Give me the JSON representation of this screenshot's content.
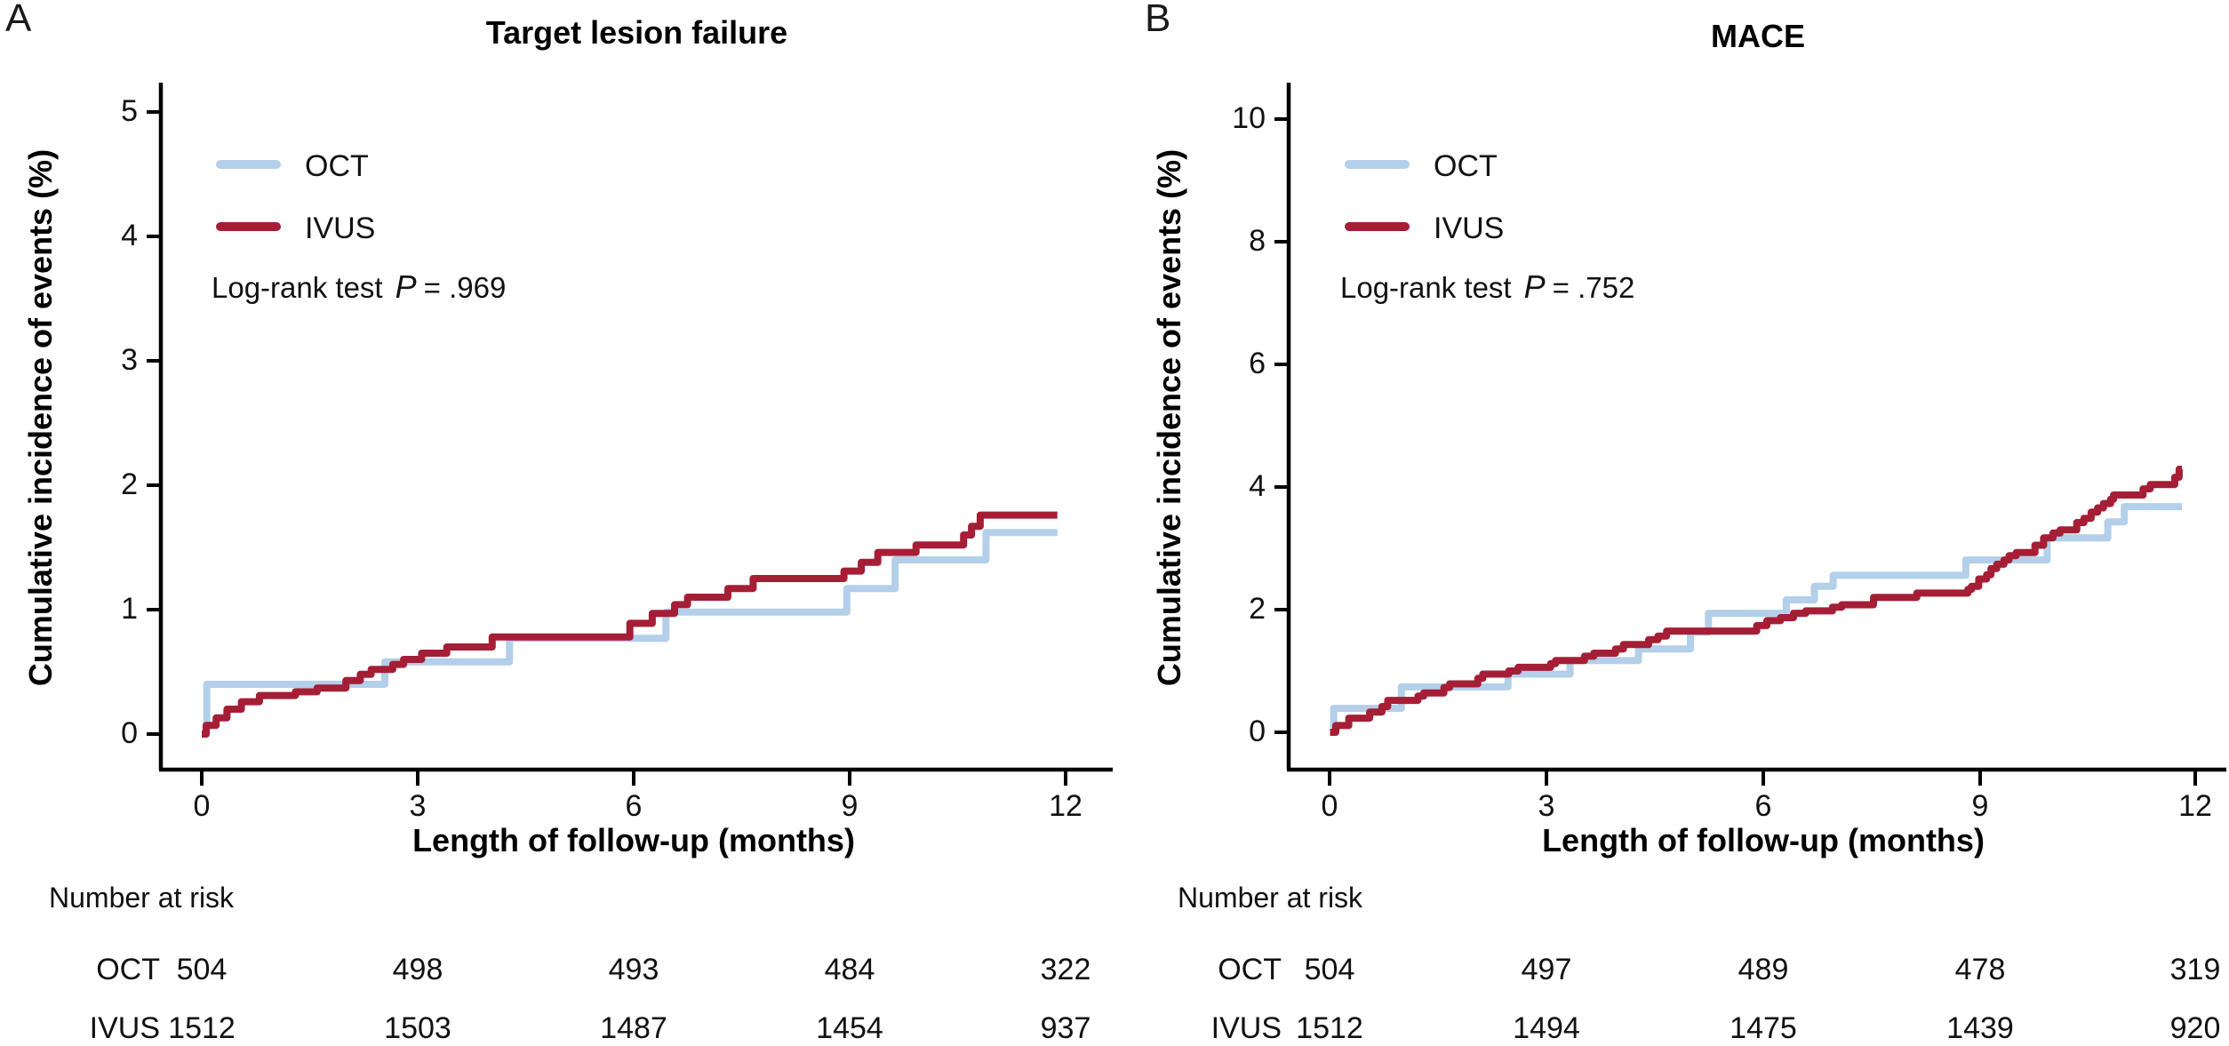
{
  "colors": {
    "oct": "#b3cfe9",
    "ivus": "#a51e35",
    "axis": "#000000"
  },
  "chart_data": [
    {
      "type": "line",
      "step": true,
      "panel_label": "A",
      "title": "Target lesion failure",
      "xlabel": "Length of follow-up (months)",
      "ylabel": "Cumulative incidence of events (%)",
      "xlim": [
        0,
        12
      ],
      "ylim": [
        0,
        5
      ],
      "x_ticks": [
        0,
        3,
        6,
        9,
        12
      ],
      "y_ticks": [
        0,
        1,
        2,
        3,
        4,
        5
      ],
      "grid": false,
      "legend_position": "top-left",
      "logrank": {
        "prefix": "Log-rank test",
        "stat": "P",
        "value": "= .969"
      },
      "series": [
        {
          "name": "OCT",
          "key": "oct",
          "points": [
            [
              0,
              0
            ],
            [
              0.07,
              0.4
            ],
            [
              2.54,
              0.58
            ],
            [
              4.27,
              0.77
            ],
            [
              6.44,
              0.98
            ],
            [
              8.95,
              1.17
            ],
            [
              9.62,
              1.4
            ],
            [
              10.88,
              1.62
            ],
            [
              11.87,
              1.62
            ]
          ]
        },
        {
          "name": "IVUS",
          "key": "ivus",
          "points": [
            [
              0,
              0
            ],
            [
              0.06,
              0.07
            ],
            [
              0.2,
              0.13
            ],
            [
              0.35,
              0.2
            ],
            [
              0.55,
              0.26
            ],
            [
              0.8,
              0.31
            ],
            [
              1.3,
              0.34
            ],
            [
              1.6,
              0.37
            ],
            [
              2.0,
              0.43
            ],
            [
              2.2,
              0.48
            ],
            [
              2.35,
              0.52
            ],
            [
              2.65,
              0.56
            ],
            [
              2.8,
              0.6
            ],
            [
              3.05,
              0.65
            ],
            [
              3.4,
              0.7
            ],
            [
              4.03,
              0.78
            ],
            [
              5.94,
              0.89
            ],
            [
              6.25,
              0.97
            ],
            [
              6.56,
              1.04
            ],
            [
              6.74,
              1.1
            ],
            [
              7.3,
              1.17
            ],
            [
              7.65,
              1.25
            ],
            [
              8.91,
              1.31
            ],
            [
              9.15,
              1.38
            ],
            [
              9.38,
              1.46
            ],
            [
              9.91,
              1.52
            ],
            [
              10.57,
              1.6
            ],
            [
              10.68,
              1.67
            ],
            [
              10.8,
              1.76
            ],
            [
              11.87,
              1.76
            ]
          ]
        }
      ],
      "number_at_risk": {
        "heading": "Number at risk",
        "time_points": [
          0,
          3,
          6,
          9,
          12
        ],
        "rows": [
          {
            "label": "OCT",
            "counts": [
              504,
              498,
              493,
              484,
              322
            ]
          },
          {
            "label": "IVUS",
            "counts": [
              1512,
              1503,
              1487,
              1454,
              937
            ]
          }
        ]
      }
    },
    {
      "type": "line",
      "step": true,
      "panel_label": "B",
      "title": "MACE",
      "xlabel": "Length of follow-up (months)",
      "ylabel": "Cumulative incidence of events (%)",
      "xlim": [
        0,
        12
      ],
      "ylim": [
        0,
        10
      ],
      "x_ticks": [
        0,
        3,
        6,
        9,
        12
      ],
      "y_ticks": [
        0,
        2,
        4,
        6,
        8,
        10
      ],
      "grid": false,
      "legend_position": "top-left",
      "logrank": {
        "prefix": "Log-rank test",
        "stat": "P",
        "value": "= .752"
      },
      "series": [
        {
          "name": "OCT",
          "key": "oct",
          "points": [
            [
              0,
              0
            ],
            [
              0.05,
              0.39
            ],
            [
              0.99,
              0.74
            ],
            [
              2.47,
              0.95
            ],
            [
              3.33,
              1.17
            ],
            [
              4.28,
              1.36
            ],
            [
              5.0,
              1.63
            ],
            [
              5.25,
              1.94
            ],
            [
              6.33,
              2.16
            ],
            [
              6.72,
              2.38
            ],
            [
              6.98,
              2.56
            ],
            [
              8.82,
              2.81
            ],
            [
              9.95,
              3.17
            ],
            [
              10.79,
              3.43
            ],
            [
              11.02,
              3.68
            ],
            [
              11.82,
              3.68
            ]
          ]
        },
        {
          "name": "IVUS",
          "key": "ivus",
          "points": [
            [
              0,
              0
            ],
            [
              0.08,
              0.11
            ],
            [
              0.26,
              0.23
            ],
            [
              0.55,
              0.33
            ],
            [
              0.72,
              0.42
            ],
            [
              0.8,
              0.52
            ],
            [
              1.22,
              0.59
            ],
            [
              1.3,
              0.64
            ],
            [
              1.58,
              0.73
            ],
            [
              1.66,
              0.79
            ],
            [
              2.05,
              0.88
            ],
            [
              2.12,
              0.95
            ],
            [
              2.48,
              1.0
            ],
            [
              2.61,
              1.06
            ],
            [
              3.06,
              1.12
            ],
            [
              3.13,
              1.17
            ],
            [
              3.53,
              1.24
            ],
            [
              3.66,
              1.29
            ],
            [
              3.96,
              1.36
            ],
            [
              4.07,
              1.43
            ],
            [
              4.42,
              1.51
            ],
            [
              4.55,
              1.57
            ],
            [
              4.67,
              1.65
            ],
            [
              5.92,
              1.74
            ],
            [
              6.06,
              1.82
            ],
            [
              6.25,
              1.87
            ],
            [
              6.43,
              1.94
            ],
            [
              6.6,
              1.98
            ],
            [
              6.97,
              2.04
            ],
            [
              7.1,
              2.08
            ],
            [
              7.54,
              2.2
            ],
            [
              8.14,
              2.27
            ],
            [
              8.85,
              2.33
            ],
            [
              8.9,
              2.38
            ],
            [
              9.0,
              2.5
            ],
            [
              9.11,
              2.57
            ],
            [
              9.17,
              2.67
            ],
            [
              9.25,
              2.74
            ],
            [
              9.35,
              2.81
            ],
            [
              9.42,
              2.88
            ],
            [
              9.52,
              2.93
            ],
            [
              9.78,
              3.05
            ],
            [
              9.9,
              3.17
            ],
            [
              10.03,
              3.25
            ],
            [
              10.13,
              3.3
            ],
            [
              10.36,
              3.42
            ],
            [
              10.46,
              3.49
            ],
            [
              10.56,
              3.59
            ],
            [
              10.65,
              3.66
            ],
            [
              10.73,
              3.73
            ],
            [
              10.83,
              3.8
            ],
            [
              10.87,
              3.87
            ],
            [
              11.28,
              3.97
            ],
            [
              11.38,
              4.04
            ],
            [
              11.72,
              4.16
            ],
            [
              11.78,
              4.29
            ],
            [
              11.82,
              4.29
            ]
          ]
        }
      ],
      "number_at_risk": {
        "heading": "Number at risk",
        "time_points": [
          0,
          3,
          6,
          9,
          12
        ],
        "rows": [
          {
            "label": "OCT",
            "counts": [
              504,
              497,
              489,
              478,
              319
            ]
          },
          {
            "label": "IVUS",
            "counts": [
              1512,
              1494,
              1475,
              1439,
              920
            ]
          }
        ]
      }
    }
  ]
}
